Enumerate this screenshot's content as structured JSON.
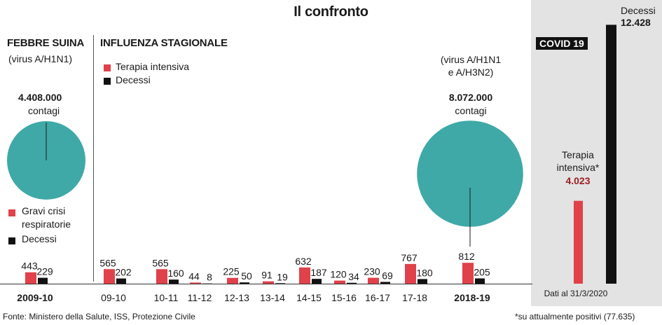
{
  "title": "Il confronto",
  "colors": {
    "pie": "#3fa9a7",
    "red": "#e0414a",
    "black": "#111111",
    "covid_bg": "#e3e3e3",
    "dark_red_text": "#9a1f23"
  },
  "swine_flu": {
    "title": "FEBBRE SUINA",
    "subtitle": "(virus A/H1N1)",
    "cases_value": "4.408.000",
    "cases_label": "contagi",
    "legend_red": "Gravi crisi respiratorie",
    "legend_red_line1": "Gravi crisi",
    "legend_red_line2": "respiratorie",
    "legend_black": "Decessi"
  },
  "seasonal": {
    "title": "INFLUENZA STAGIONALE",
    "legend_red": "Terapia intensiva",
    "legend_black": "Decessi",
    "virus_line1": "(virus A/H1N1",
    "virus_line2": "e A/H3N2)",
    "cases_value": "8.072.000",
    "cases_label": "contagi"
  },
  "covid": {
    "badge": "COVID 19",
    "deaths_label": "Decessi",
    "deaths_value": "12.428",
    "icu_line1": "Terapia",
    "icu_line2": "intensiva*",
    "icu_value": "4.023",
    "date_note": "Dati al 31/3/2020"
  },
  "footer": {
    "source": "Fonte: Ministero della Salute, ISS, Protezione Civile",
    "footnote": "*su attualmente positivi (77.635)"
  },
  "chart_data": {
    "type": "bar",
    "title": "Il confronto",
    "categories": [
      "2009-10",
      "09-10",
      "10-11",
      "11-12",
      "12-13",
      "13-14",
      "14-15",
      "15-16",
      "16-17",
      "17-18",
      "2018-19"
    ],
    "bold_categories": [
      "2009-10",
      "2018-19"
    ],
    "series": [
      {
        "name": "Terapia intensiva",
        "color": "#e0414a",
        "values": [
          443,
          565,
          565,
          44,
          225,
          91,
          632,
          120,
          230,
          767,
          812
        ]
      },
      {
        "name": "Decessi",
        "color": "#111111",
        "values": [
          229,
          202,
          160,
          8,
          50,
          19,
          187,
          34,
          69,
          180,
          205
        ]
      }
    ],
    "covid_bars": [
      {
        "name": "Terapia intensiva",
        "value": 4023,
        "color": "#e0414a"
      },
      {
        "name": "Decessi",
        "value": 12428,
        "color": "#111111"
      }
    ],
    "pies": [
      {
        "label": "contagi",
        "value": 4408000,
        "color": "#3fa9a7"
      },
      {
        "label": "contagi",
        "value": 8072000,
        "color": "#3fa9a7"
      }
    ],
    "ylim": [
      0,
      12428
    ]
  }
}
